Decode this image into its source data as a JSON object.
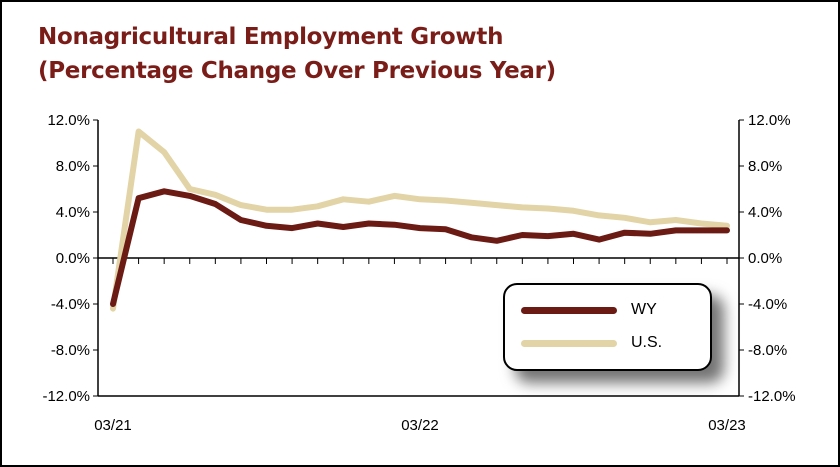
{
  "title": {
    "line1": "Nonagricultural Employment Growth",
    "line2": "(Percentage Change Over Previous Year)"
  },
  "colors": {
    "title": "#7a1c18",
    "wy": "#6b1a14",
    "us": "#e2d4a6"
  },
  "chart_data": {
    "type": "line",
    "ylim": [
      -12,
      12
    ],
    "yticks": [
      "-12.0%",
      "-8.0%",
      "-4.0%",
      "0.0%",
      "4.0%",
      "8.0%",
      "12.0%"
    ],
    "ytick_values": [
      -12,
      -8,
      -4,
      0,
      4,
      8,
      12
    ],
    "xtick_labels": [
      "03/21",
      "03/22",
      "03/23"
    ],
    "x": [
      "03/21",
      "04/21",
      "05/21",
      "06/21",
      "07/21",
      "08/21",
      "09/21",
      "10/21",
      "11/21",
      "12/21",
      "01/22",
      "02/22",
      "03/22",
      "04/22",
      "05/22",
      "06/22",
      "07/22",
      "08/22",
      "09/22",
      "10/22",
      "11/22",
      "12/22",
      "01/23",
      "02/23",
      "03/23"
    ],
    "axis_right": true,
    "grid": false,
    "legend_position": "bottom-right",
    "series": [
      {
        "name": "WY",
        "color": "#6b1a14",
        "values": [
          -4.0,
          5.2,
          5.8,
          5.4,
          4.7,
          3.3,
          2.8,
          2.6,
          3.0,
          2.7,
          3.0,
          2.9,
          2.6,
          2.5,
          1.8,
          1.5,
          2.0,
          1.9,
          2.1,
          1.6,
          2.2,
          2.1,
          2.4,
          2.4,
          2.4
        ]
      },
      {
        "name": "U.S.",
        "color": "#e2d4a6",
        "values": [
          -4.4,
          11.0,
          9.2,
          6.0,
          5.5,
          4.6,
          4.2,
          4.2,
          4.5,
          5.1,
          4.9,
          5.4,
          5.1,
          5.0,
          4.8,
          4.6,
          4.4,
          4.3,
          4.1,
          3.7,
          3.5,
          3.1,
          3.3,
          3.0,
          2.8
        ]
      }
    ]
  },
  "legend": {
    "wy_label": "WY",
    "us_label": "U.S."
  }
}
